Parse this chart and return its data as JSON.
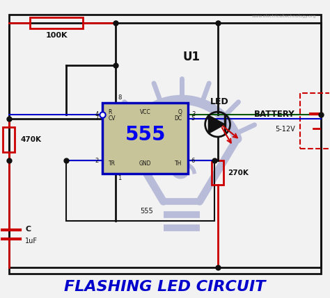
{
  "title": "FLASHING LED CIRCUIT",
  "title_color": "#0000CC",
  "title_fontsize": 16,
  "bg_color": "#f2f2f2",
  "website": "www.electricaltechnology.org",
  "ic_label": "555",
  "ic_color": "#c8c49a",
  "ic_border_color": "#0000bb",
  "ic_text_color": "#0000ee",
  "wire_color": "#111111",
  "blue_wire_color": "#0000cc",
  "green_wire_color": "#005500",
  "red_component_color": "#cc0000",
  "resistor_100k": "100K",
  "resistor_470k": "470K",
  "resistor_270k": "270K",
  "led_label": "LED",
  "u1_label": "U1",
  "node_555": "555",
  "battery_label": "BATTERY",
  "battery_voltage": "5-12V",
  "watermark_color": "#b8bcd8"
}
